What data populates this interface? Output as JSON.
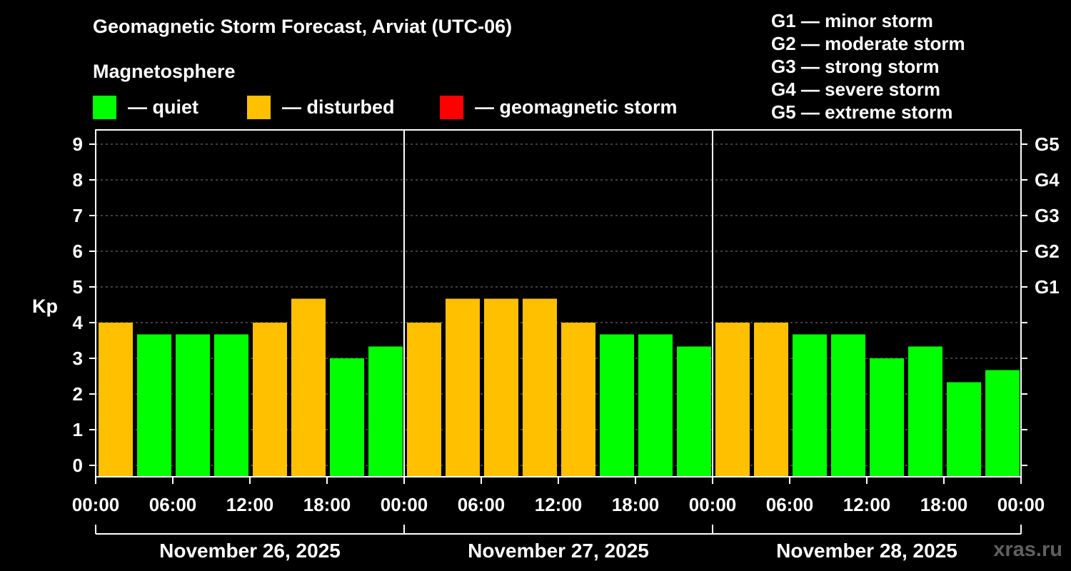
{
  "header": {
    "title": "Geomagnetic Storm Forecast, Arviat (UTC-06)",
    "subtitle": "Magnetosphere"
  },
  "legend": [
    {
      "label": "— quiet",
      "color": "#00ff00"
    },
    {
      "label": "— disturbed",
      "color": "#ffc000"
    },
    {
      "label": "— geomagnetic storm",
      "color": "#ff0000"
    }
  ],
  "storm_levels": [
    "G1 — minor storm",
    "G2 — moderate storm",
    "G3 — strong storm",
    "G4 — severe storm",
    "G5 — extreme storm"
  ],
  "watermark": "xras.ru",
  "chart_data": {
    "type": "bar",
    "ylabel": "Kp",
    "ylim": [
      0,
      9
    ],
    "yticks": [
      "0",
      "1",
      "2",
      "3",
      "4",
      "5",
      "6",
      "7",
      "8",
      "9"
    ],
    "right_axis_labels": [
      {
        "kp": 5,
        "label": "G1"
      },
      {
        "kp": 6,
        "label": "G2"
      },
      {
        "kp": 7,
        "label": "G3"
      },
      {
        "kp": 8,
        "label": "G4"
      },
      {
        "kp": 9,
        "label": "G5"
      }
    ],
    "xticks": [
      "00:00",
      "06:00",
      "12:00",
      "18:00",
      "00:00",
      "06:00",
      "12:00",
      "18:00",
      "00:00",
      "06:00",
      "12:00",
      "18:00",
      "00:00"
    ],
    "days": [
      "November 26, 2025",
      "November 27, 2025",
      "November 28, 2025"
    ],
    "grid": true,
    "values": [
      4.0,
      3.67,
      3.67,
      3.67,
      4.0,
      4.67,
      3.0,
      3.33,
      4.0,
      4.67,
      4.67,
      4.67,
      4.0,
      3.67,
      3.67,
      3.33,
      4.0,
      4.0,
      3.67,
      3.67,
      3.0,
      3.33,
      2.33,
      2.67
    ],
    "thresholds": {
      "disturbed_from": 4,
      "storm_from": 5
    },
    "colors": {
      "quiet": "#00ff00",
      "disturbed": "#ffc000",
      "storm": "#ff0000"
    }
  }
}
